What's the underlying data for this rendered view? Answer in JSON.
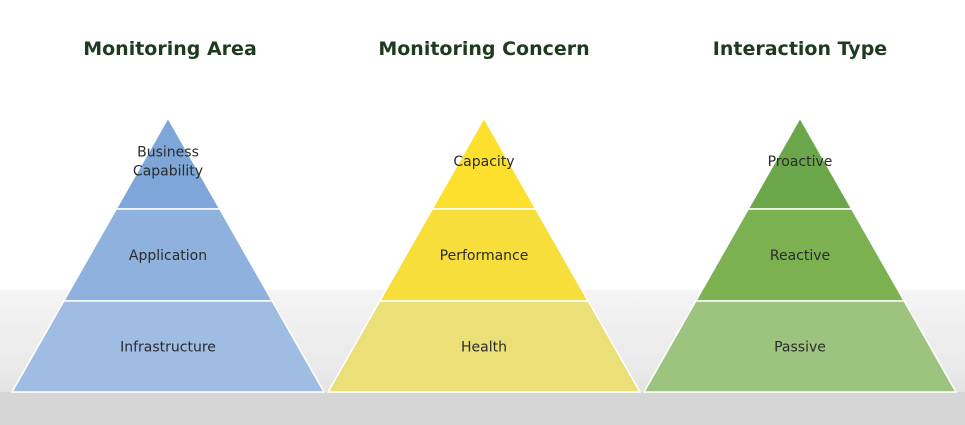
{
  "pyramids": [
    {
      "title": "Monitoring Area",
      "colors": {
        "top": "#7ea6d8",
        "mid": "#8eb2dd",
        "bottom": "#9fbde3"
      },
      "levels": [
        [
          "Business",
          "Capability"
        ],
        [
          "Application"
        ],
        [
          "Infrastructure"
        ]
      ]
    },
    {
      "title": "Monitoring Concern",
      "colors": {
        "top": "#fde02e",
        "mid": "#f8de3a",
        "bottom": "#ebdf78"
      },
      "levels": [
        [
          "Capacity"
        ],
        [
          "Performance"
        ],
        [
          "Health"
        ]
      ]
    },
    {
      "title": "Interaction Type",
      "colors": {
        "top": "#6ca64a",
        "mid": "#7cb152",
        "bottom": "#9cc47f"
      },
      "levels": [
        [
          "Proactive"
        ],
        [
          "Reactive"
        ],
        [
          "Passive"
        ]
      ]
    }
  ]
}
